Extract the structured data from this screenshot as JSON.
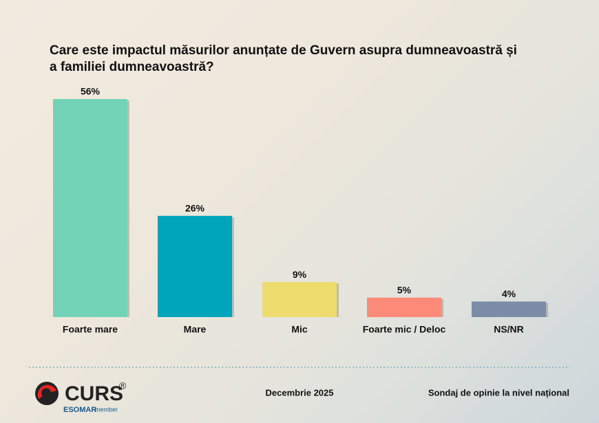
{
  "chart_data": {
    "type": "bar",
    "title": "Care este impactul măsurilor anunțate de Guvern asupra dumneavoastră și a familiei dumneavoastră?",
    "categories": [
      "Foarte mare",
      "Mare",
      "Mic",
      "Foarte mic / Deloc",
      "NS/NR"
    ],
    "values": [
      56,
      26,
      9,
      5,
      4
    ],
    "value_labels": [
      "56%",
      "26%",
      "9%",
      "5%",
      "4%"
    ],
    "colors": [
      "#72d3b6",
      "#00a5bb",
      "#eedc6e",
      "#fb8b78",
      "#7b8ca6"
    ]
  },
  "footer": {
    "logo": "CURS",
    "registered": "®",
    "esomar": "ESOMAR",
    "member": "member",
    "date": "Decembrie 2025",
    "note": "Sondaj de opinie la nivel național"
  }
}
